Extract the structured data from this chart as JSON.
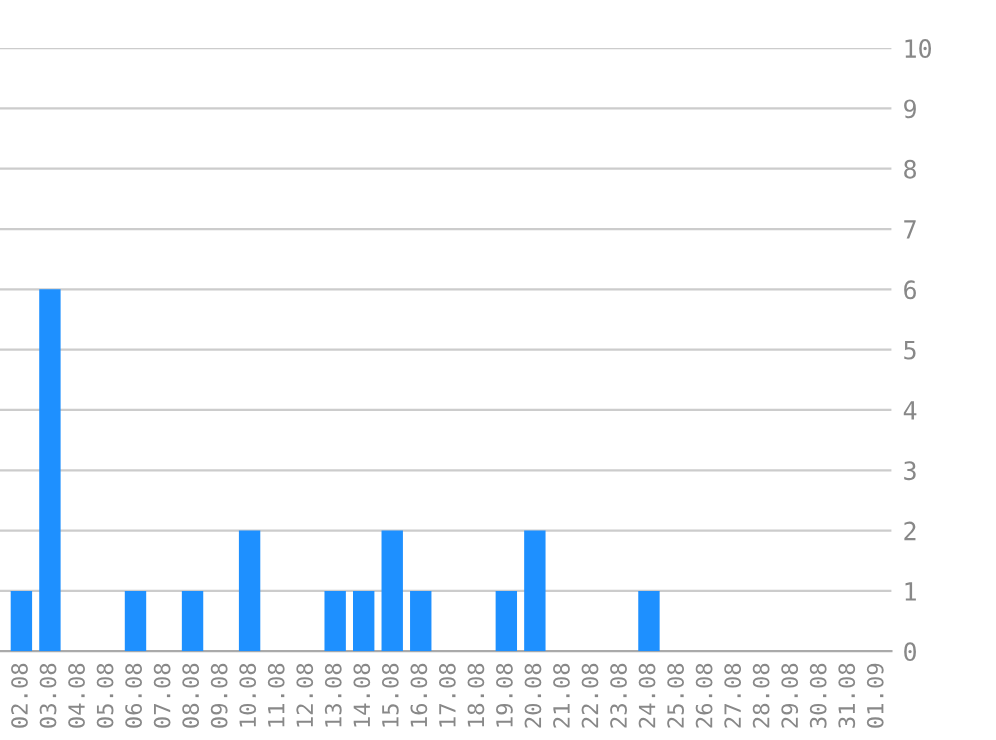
{
  "chart_data": {
    "type": "bar",
    "categories": [
      "02.08",
      "03.08",
      "04.08",
      "05.08",
      "06.08",
      "07.08",
      "08.08",
      "09.08",
      "10.08",
      "11.08",
      "12.08",
      "13.08",
      "14.08",
      "15.08",
      "16.08",
      "17.08",
      "18.08",
      "19.08",
      "20.08",
      "21.08",
      "22.08",
      "23.08",
      "24.08",
      "25.08",
      "26.08",
      "27.08",
      "28.08",
      "29.08",
      "30.08",
      "31.08",
      "01.09"
    ],
    "values": [
      1,
      6,
      0,
      0,
      1,
      0,
      1,
      0,
      2,
      0,
      0,
      1,
      1,
      2,
      1,
      0,
      0,
      1,
      2,
      0,
      0,
      0,
      1,
      0,
      0,
      0,
      0,
      0,
      0,
      0,
      0
    ],
    "color": "#1e90ff",
    "ylim": [
      0,
      10
    ],
    "yticks": [
      0,
      1,
      2,
      3,
      4,
      5,
      6,
      7,
      8,
      9,
      10
    ],
    "grid": "y"
  }
}
